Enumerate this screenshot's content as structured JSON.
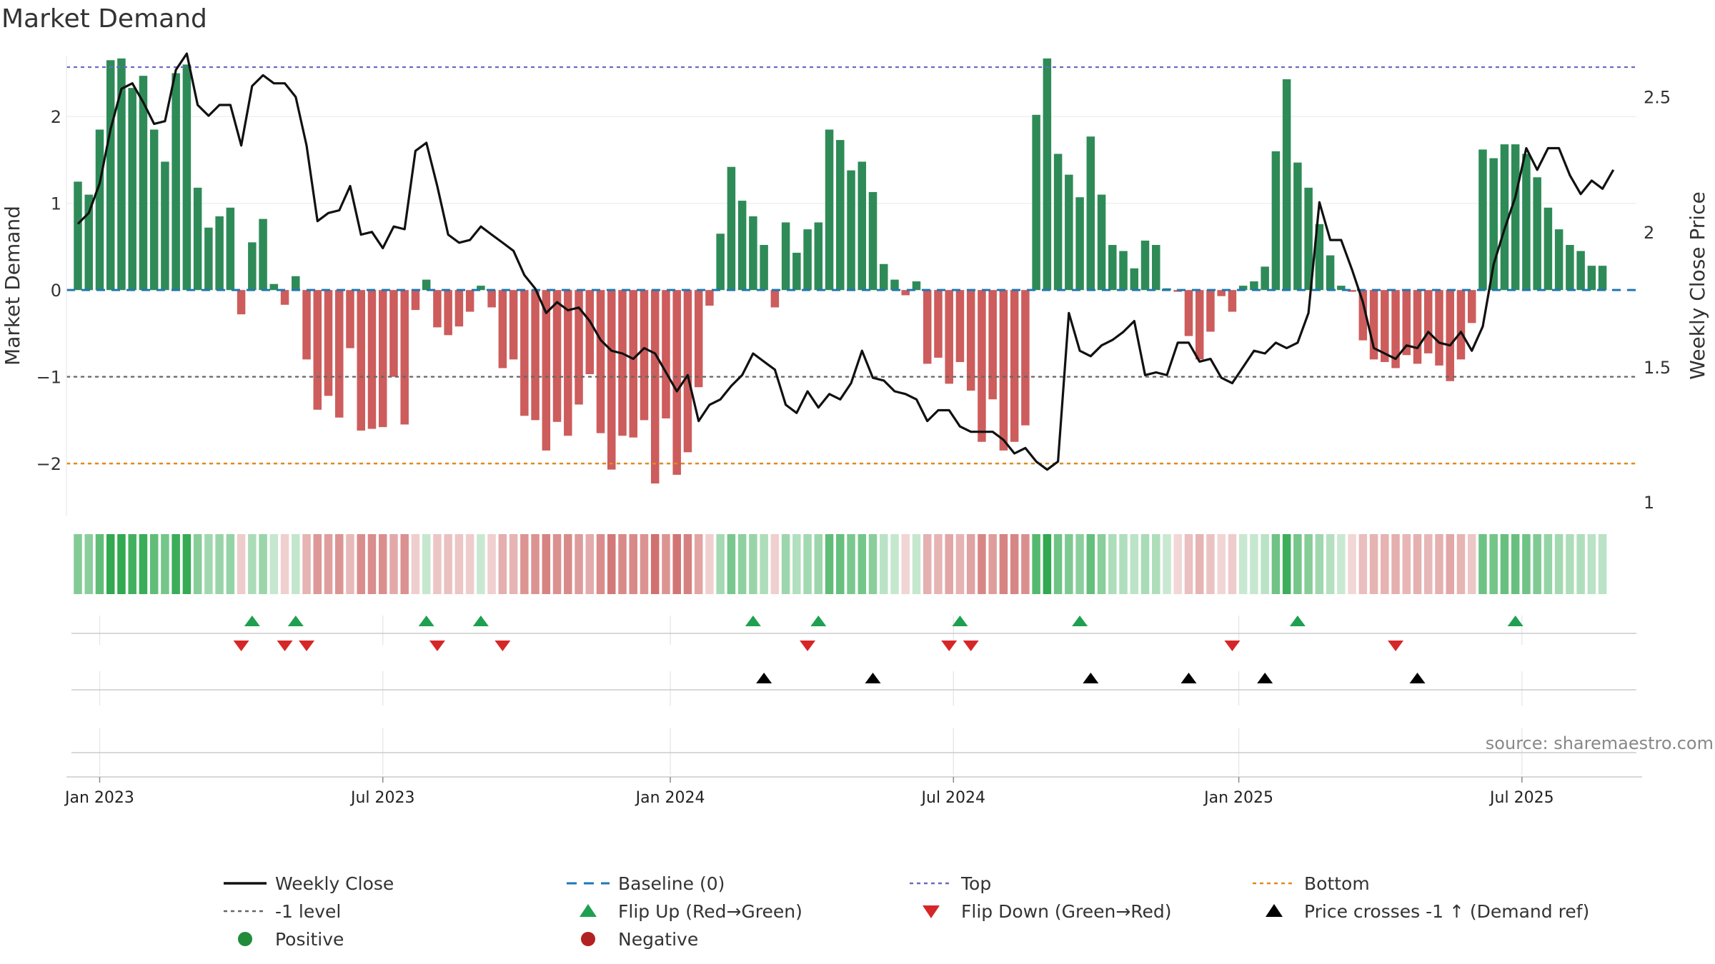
{
  "chart_data": {
    "type": "bar",
    "title": "Market Demand",
    "ylabel": "Market Demand",
    "y2label": "Weekly Close Price",
    "ylim": [
      -2.6,
      2.85
    ],
    "y2lim": [
      0.95,
      2.7
    ],
    "yticks": [
      2,
      1,
      0,
      -1,
      -2
    ],
    "ytick_labels": [
      "2",
      "1",
      "0",
      "−1",
      "−2"
    ],
    "y2ticks": [
      2.5,
      2,
      1.5,
      1
    ],
    "y2tick_labels": [
      "2.5",
      "2",
      "1.5",
      "1"
    ],
    "reference_lines": {
      "top": 2.57,
      "minus_one": -1,
      "bottom": -2,
      "baseline": 0
    },
    "xtick_labels": [
      "Jan 2023",
      "Jul 2023",
      "Jan 2024",
      "Jul 2024",
      "Jan 2025",
      "Jul 2025"
    ],
    "xtick_weeks": [
      2,
      28,
      54.4,
      80.4,
      106.6,
      132.6
    ],
    "source": "source: sharemaestro.com",
    "series": [
      {
        "name": "Market Demand",
        "type": "bar",
        "values": [
          1.25,
          1.1,
          1.85,
          2.65,
          2.67,
          2.33,
          2.47,
          1.85,
          1.48,
          2.5,
          2.6,
          1.18,
          0.72,
          0.85,
          0.95,
          -0.28,
          0.55,
          0.82,
          0.07,
          -0.17,
          0.16,
          -0.8,
          -1.38,
          -1.22,
          -1.47,
          -0.67,
          -1.62,
          -1.6,
          -1.58,
          -1.0,
          -1.55,
          -0.23,
          0.12,
          -0.43,
          -0.52,
          -0.42,
          -0.25,
          0.05,
          -0.2,
          -0.9,
          -0.8,
          -1.45,
          -1.5,
          -1.85,
          -1.52,
          -1.68,
          -1.32,
          -0.97,
          -1.65,
          -2.07,
          -1.68,
          -1.7,
          -1.5,
          -2.23,
          -1.48,
          -2.13,
          -1.87,
          -1.12,
          -0.18,
          0.65,
          1.42,
          1.03,
          0.85,
          0.52,
          -0.2,
          0.78,
          0.43,
          0.7,
          0.78,
          1.85,
          1.73,
          1.38,
          1.48,
          1.13,
          0.3,
          0.12,
          -0.06,
          0.1,
          -0.85,
          -0.78,
          -1.08,
          -0.83,
          -1.16,
          -1.75,
          -1.26,
          -1.85,
          -1.75,
          -1.56,
          2.02,
          2.67,
          1.57,
          1.33,
          1.07,
          1.77,
          1.1,
          0.52,
          0.45,
          0.25,
          0.57,
          0.52,
          0.02,
          -0.02,
          -0.53,
          -0.8,
          -0.48,
          -0.07,
          -0.25,
          0.05,
          0.1,
          0.27,
          1.6,
          2.43,
          1.47,
          1.18,
          0.76,
          0.4,
          0.05,
          -0.02,
          -0.58,
          -0.8,
          -0.83,
          -0.9,
          -0.75,
          -0.85,
          -0.73,
          -0.87,
          -1.05,
          -0.8,
          -0.38,
          1.62,
          1.52,
          1.68,
          1.68,
          1.57,
          1.3,
          0.95,
          0.7,
          0.52,
          0.45,
          0.28,
          0.28
        ]
      },
      {
        "name": "Weekly Close",
        "type": "line",
        "values": [
          2.03,
          2.07,
          2.18,
          2.38,
          2.53,
          2.55,
          2.48,
          2.4,
          2.41,
          2.6,
          2.66,
          2.47,
          2.43,
          2.47,
          2.47,
          2.32,
          2.54,
          2.58,
          2.55,
          2.55,
          2.5,
          2.32,
          2.04,
          2.07,
          2.08,
          2.17,
          1.99,
          2.0,
          1.94,
          2.02,
          2.01,
          2.3,
          2.33,
          2.17,
          1.99,
          1.96,
          1.97,
          2.02,
          1.99,
          1.96,
          1.93,
          1.84,
          1.79,
          1.7,
          1.74,
          1.71,
          1.72,
          1.67,
          1.6,
          1.56,
          1.55,
          1.53,
          1.57,
          1.55,
          1.48,
          1.41,
          1.47,
          1.3,
          1.36,
          1.38,
          1.43,
          1.47,
          1.55,
          1.52,
          1.49,
          1.36,
          1.33,
          1.41,
          1.35,
          1.4,
          1.38,
          1.44,
          1.56,
          1.46,
          1.45,
          1.41,
          1.4,
          1.38,
          1.3,
          1.34,
          1.34,
          1.28,
          1.26,
          1.26,
          1.26,
          1.23,
          1.18,
          1.2,
          1.15,
          1.12,
          1.15,
          1.7,
          1.56,
          1.54,
          1.58,
          1.6,
          1.63,
          1.67,
          1.47,
          1.48,
          1.47,
          1.59,
          1.59,
          1.52,
          1.53,
          1.46,
          1.44,
          1.5,
          1.56,
          1.55,
          1.59,
          1.57,
          1.59,
          1.7,
          2.11,
          1.97,
          1.97,
          1.86,
          1.74,
          1.57,
          1.55,
          1.53,
          1.58,
          1.57,
          1.63,
          1.59,
          1.58,
          1.63,
          1.56,
          1.65,
          1.88,
          2.01,
          2.13,
          2.31,
          2.23,
          2.31,
          2.31,
          2.21,
          2.14,
          2.19,
          2.16,
          2.23
        ]
      }
    ],
    "heat_strip": {
      "label": "Market Demand heat strip",
      "values_source": "Market Demand"
    },
    "flip_up_weeks": [
      16,
      20,
      32,
      37,
      62,
      68,
      81,
      92,
      112,
      132
    ],
    "flip_down_weeks": [
      15,
      19,
      21,
      33,
      39,
      67,
      80,
      82,
      106,
      121
    ],
    "price_cross_weeks": [
      63,
      73,
      93,
      102,
      109,
      123
    ],
    "legend": {
      "placement": "bottom",
      "entries": [
        {
          "label": "Weekly Close",
          "symbol": "solid-line",
          "color": "#111111"
        },
        {
          "label": "Baseline (0)",
          "symbol": "dashed-line",
          "color": "#1f77b4"
        },
        {
          "label": "Top",
          "symbol": "dotted-line",
          "color": "#6a6ac0"
        },
        {
          "label": "Bottom",
          "symbol": "dotted-line",
          "color": "#e08a1e"
        },
        {
          "label": "-1 level",
          "symbol": "dotted-line",
          "color": "#666666"
        },
        {
          "label": "Flip Up (Red→Green)",
          "symbol": "triangle-up",
          "color": "#1fa050"
        },
        {
          "label": "Flip Down (Green→Red)",
          "symbol": "triangle-down",
          "color": "#d62728"
        },
        {
          "label": "Price crosses -1 ↑ (Demand ref)",
          "symbol": "triangle-up",
          "color": "#000000"
        },
        {
          "label": "Positive",
          "symbol": "circle",
          "color": "#228b3a"
        },
        {
          "label": "Negative",
          "symbol": "circle",
          "color": "#b22222"
        }
      ]
    }
  },
  "colors": {
    "positive_bar": "#2e8b57",
    "negative_bar": "#cd5c5c",
    "price_line": "#111111",
    "baseline": "#1f77b4",
    "top_line": "#6a6ac0",
    "bottom_line": "#e08a1e",
    "minus_one_line": "#666666",
    "flip_up": "#1fa050",
    "flip_down": "#d62728",
    "cross": "#000000"
  }
}
